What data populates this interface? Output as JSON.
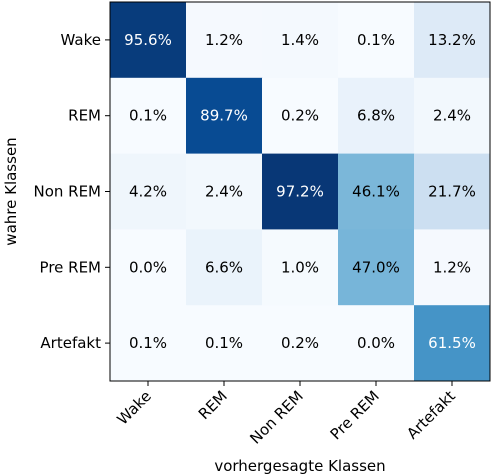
{
  "chart_data": {
    "type": "heatmap",
    "title": "",
    "xlabel": "vorhergesagte Klassen",
    "ylabel": "wahre Klassen",
    "x_categories": [
      "Wake",
      "REM",
      "Non REM",
      "Pre REM",
      "Artefakt"
    ],
    "y_categories": [
      "Wake",
      "REM",
      "Non REM",
      "Pre REM",
      "Artefakt"
    ],
    "colormap": "Blues",
    "color_range": [
      0,
      100
    ],
    "values": [
      [
        95.6,
        1.2,
        1.4,
        0.1,
        13.2
      ],
      [
        0.1,
        89.7,
        0.2,
        6.8,
        2.4
      ],
      [
        4.2,
        2.4,
        97.2,
        46.1,
        21.7
      ],
      [
        0.0,
        6.6,
        1.0,
        47.0,
        1.2
      ],
      [
        0.1,
        0.1,
        0.2,
        0.0,
        61.5
      ]
    ],
    "labels": [
      [
        "95.6%",
        "1.2%",
        "1.4%",
        "0.1%",
        "13.2%"
      ],
      [
        "0.1%",
        "89.7%",
        "0.2%",
        "6.8%",
        "2.4%"
      ],
      [
        "4.2%",
        "2.4%",
        "97.2%",
        "46.1%",
        "21.7%"
      ],
      [
        "0.0%",
        "6.6%",
        "1.0%",
        "47.0%",
        "1.2%"
      ],
      [
        "0.1%",
        "0.1%",
        "0.2%",
        "0.0%",
        "61.5%"
      ]
    ],
    "grid": false,
    "legend": "none"
  }
}
